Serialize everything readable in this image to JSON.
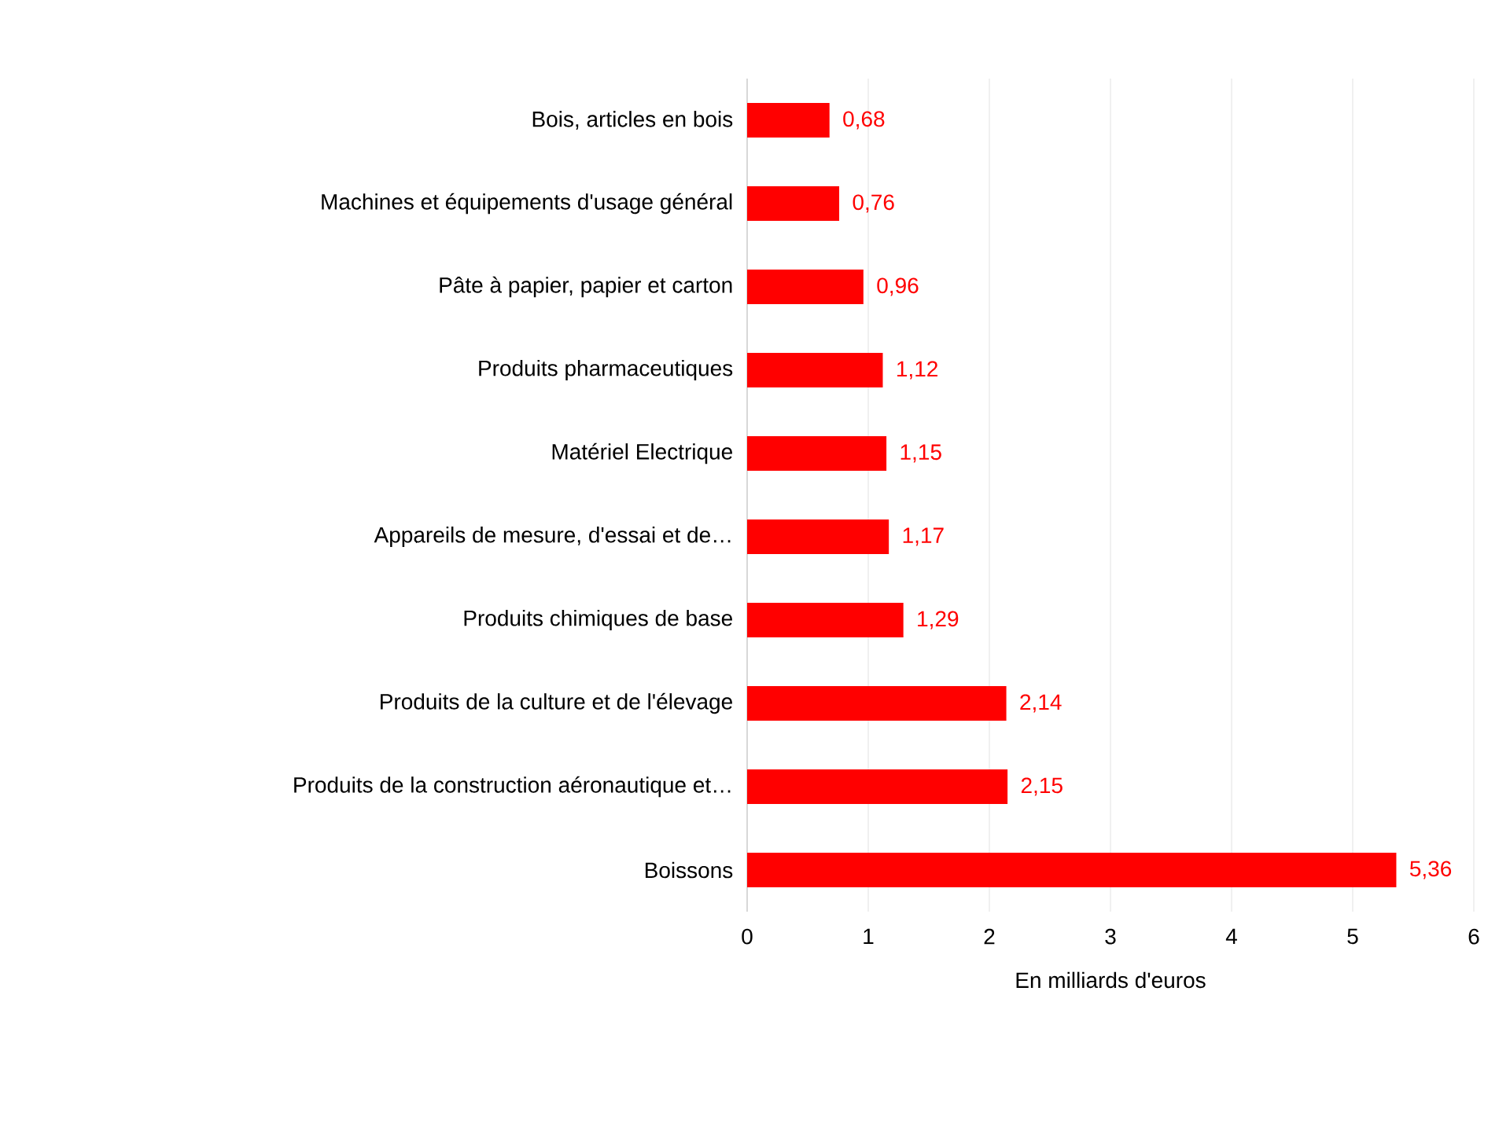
{
  "chart_data": {
    "type": "bar",
    "orientation": "horizontal",
    "categories": [
      "Bois, articles en bois",
      "Machines et équipements d'usage général",
      "Pâte à papier, papier et carton",
      "Produits pharmaceutiques",
      "Matériel Electrique",
      "Appareils de mesure, d'essai et de…",
      "Produits chimiques de base",
      "Produits de la culture et de l'élevage",
      "Produits de la construction aéronautique et…",
      "Boissons"
    ],
    "values": [
      0.68,
      0.76,
      0.96,
      1.12,
      1.15,
      1.17,
      1.29,
      2.14,
      2.15,
      5.36
    ],
    "value_labels": [
      "0,68",
      "0,76",
      "0,96",
      "1,12",
      "1,15",
      "1,17",
      "1,29",
      "2,14",
      "2,15",
      "5,36"
    ],
    "color": "#ff0000",
    "xlabel": "En milliards d'euros",
    "xlim": [
      0,
      6
    ],
    "xticks": [
      0,
      1,
      2,
      3,
      4,
      5,
      6
    ],
    "grid": "x"
  }
}
